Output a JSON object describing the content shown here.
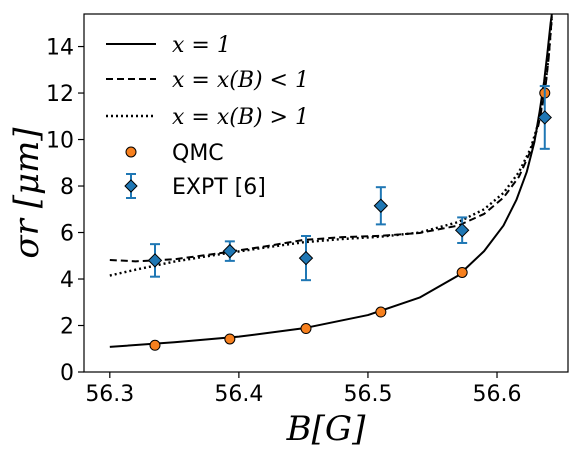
{
  "chart_data": {
    "type": "scatter",
    "title": "",
    "xlabel": "B[G]",
    "ylabel": "σr [μm]",
    "xlim": [
      56.28,
      56.655
    ],
    "ylim": [
      0,
      15.4
    ],
    "x_ticks": [
      {
        "value": 56.3,
        "label": "56.3"
      },
      {
        "value": 56.4,
        "label": "56.4"
      },
      {
        "value": 56.5,
        "label": "56.5"
      },
      {
        "value": 56.6,
        "label": "56.6"
      }
    ],
    "y_ticks": [
      {
        "value": 0,
        "label": "0"
      },
      {
        "value": 2,
        "label": "2"
      },
      {
        "value": 4,
        "label": "4"
      },
      {
        "value": 6,
        "label": "6"
      },
      {
        "value": 8,
        "label": "8"
      },
      {
        "value": 10,
        "label": "10"
      },
      {
        "value": 12,
        "label": "12"
      },
      {
        "value": 14,
        "label": "14"
      }
    ],
    "grid": false,
    "legend_position": "top-left",
    "series": [
      {
        "name": "x = 1",
        "kind": "line",
        "style": "solid",
        "color": "#000000",
        "points": [
          [
            56.3,
            1.08
          ],
          [
            56.35,
            1.28
          ],
          [
            56.4,
            1.52
          ],
          [
            56.45,
            1.88
          ],
          [
            56.5,
            2.45
          ],
          [
            56.54,
            3.2
          ],
          [
            56.57,
            4.15
          ],
          [
            56.59,
            5.2
          ],
          [
            56.605,
            6.3
          ],
          [
            56.615,
            7.4
          ],
          [
            56.623,
            8.6
          ],
          [
            56.629,
            9.9
          ],
          [
            56.633,
            11.2
          ],
          [
            56.6365,
            12.5
          ],
          [
            56.639,
            13.7
          ],
          [
            56.6415,
            15.0
          ],
          [
            56.6425,
            15.4
          ]
        ]
      },
      {
        "name": "x = x(B) < 1",
        "kind": "line",
        "style": "dashed",
        "color": "#000000",
        "points": [
          [
            56.3,
            4.82
          ],
          [
            56.32,
            4.76
          ],
          [
            56.35,
            4.85
          ],
          [
            56.38,
            5.07
          ],
          [
            56.42,
            5.4
          ],
          [
            56.45,
            5.68
          ],
          [
            56.48,
            5.8
          ],
          [
            56.51,
            5.86
          ],
          [
            56.54,
            5.98
          ],
          [
            56.57,
            6.3
          ],
          [
            56.59,
            6.8
          ],
          [
            56.605,
            7.5
          ],
          [
            56.617,
            8.4
          ],
          [
            56.626,
            9.5
          ],
          [
            56.632,
            10.6
          ],
          [
            56.637,
            12.0
          ],
          [
            56.64,
            13.5
          ],
          [
            56.6425,
            15.3
          ]
        ]
      },
      {
        "name": "x = x(B) > 1",
        "kind": "line",
        "style": "dotted",
        "color": "#000000",
        "points": [
          [
            56.3,
            4.15
          ],
          [
            56.32,
            4.4
          ],
          [
            56.35,
            4.75
          ],
          [
            56.38,
            5.02
          ],
          [
            56.42,
            5.35
          ],
          [
            56.45,
            5.58
          ],
          [
            56.48,
            5.72
          ],
          [
            56.51,
            5.82
          ],
          [
            56.54,
            6.0
          ],
          [
            56.57,
            6.45
          ],
          [
            56.59,
            7.0
          ],
          [
            56.605,
            7.7
          ],
          [
            56.617,
            8.6
          ],
          [
            56.626,
            9.6
          ],
          [
            56.632,
            10.7
          ],
          [
            56.637,
            12.1
          ],
          [
            56.64,
            13.6
          ],
          [
            56.6425,
            15.3
          ]
        ]
      },
      {
        "name": "QMC",
        "kind": "points",
        "marker": "circle",
        "color": "#f7801e",
        "points": [
          [
            56.335,
            1.15
          ],
          [
            56.393,
            1.42
          ],
          [
            56.452,
            1.87
          ],
          [
            56.51,
            2.58
          ],
          [
            56.573,
            4.28
          ],
          [
            56.637,
            12.0
          ]
        ]
      },
      {
        "name": "EXPT [6]",
        "kind": "errorbar",
        "marker": "diamond",
        "color": "#1f77b4",
        "points": [
          {
            "x": 56.335,
            "y": 4.8,
            "err": 0.7
          },
          {
            "x": 56.393,
            "y": 5.2,
            "err": 0.42
          },
          {
            "x": 56.452,
            "y": 4.9,
            "err": 0.95
          },
          {
            "x": 56.51,
            "y": 7.15,
            "err": 0.8
          },
          {
            "x": 56.573,
            "y": 6.1,
            "err": 0.55
          },
          {
            "x": 56.637,
            "y": 10.95,
            "err": 1.35
          }
        ]
      }
    ]
  }
}
